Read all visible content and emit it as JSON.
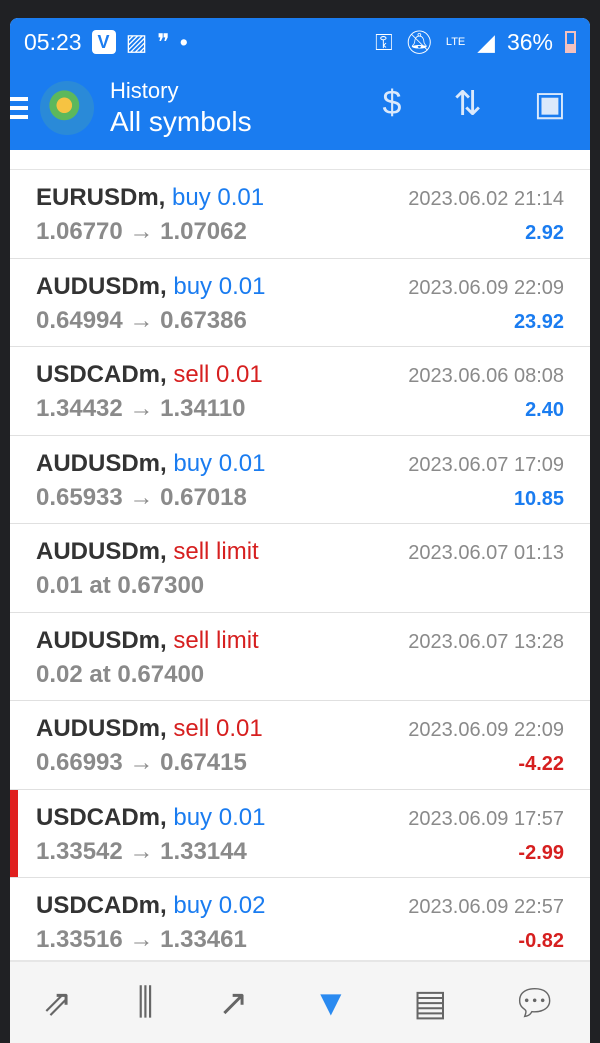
{
  "status": {
    "time": "05:23",
    "network": "LTE",
    "battery": "36%"
  },
  "header": {
    "subtitle": "History",
    "title": "All symbols"
  },
  "rows": [
    {
      "symbol": "EURUSDm,",
      "side": "buy 0.01",
      "type": "buy",
      "prices": "1.06770 → 1.07062",
      "time": "2023.06.02 21:14",
      "profit": "2.92"
    },
    {
      "symbol": "AUDUSDm,",
      "side": "buy 0.01",
      "type": "buy",
      "prices": "0.64994 → 0.67386",
      "time": "2023.06.09 22:09",
      "profit": "23.92"
    },
    {
      "symbol": "USDCADm,",
      "side": "sell 0.01",
      "type": "sell",
      "prices": "1.34432 → 1.34110",
      "time": "2023.06.06 08:08",
      "profit": "2.40"
    },
    {
      "symbol": "AUDUSDm,",
      "side": "buy 0.01",
      "type": "buy",
      "prices": "0.65933 → 0.67018",
      "time": "2023.06.07 17:09",
      "profit": "10.85"
    },
    {
      "symbol": "AUDUSDm,",
      "side": "sell limit",
      "type": "sell",
      "prices": "0.01 at 0.67300",
      "time": "2023.06.07 01:13",
      "profit": ""
    },
    {
      "symbol": "AUDUSDm,",
      "side": "sell limit",
      "type": "sell",
      "prices": "0.02 at 0.67400",
      "time": "2023.06.07 13:28",
      "profit": ""
    },
    {
      "symbol": "AUDUSDm,",
      "side": "sell 0.01",
      "type": "sell",
      "prices": "0.66993 → 0.67415",
      "time": "2023.06.09 22:09",
      "profit": "-4.22"
    },
    {
      "symbol": "USDCADm,",
      "side": "buy 0.01",
      "type": "buy",
      "prices": "1.33542 → 1.33144",
      "time": "2023.06.09 17:57",
      "profit": "-2.99"
    },
    {
      "symbol": "USDCADm,",
      "side": "buy 0.02",
      "type": "buy",
      "prices": "1.33516 → 1.33461",
      "time": "2023.06.09 22:57",
      "profit": "-0.82"
    }
  ],
  "nav": [
    "quotes-icon",
    "chart-icon",
    "trade-icon",
    "history-icon",
    "news-icon",
    "chat-icon"
  ],
  "colors": {
    "accent": "#1a7cf0",
    "loss": "#d61f1f"
  }
}
